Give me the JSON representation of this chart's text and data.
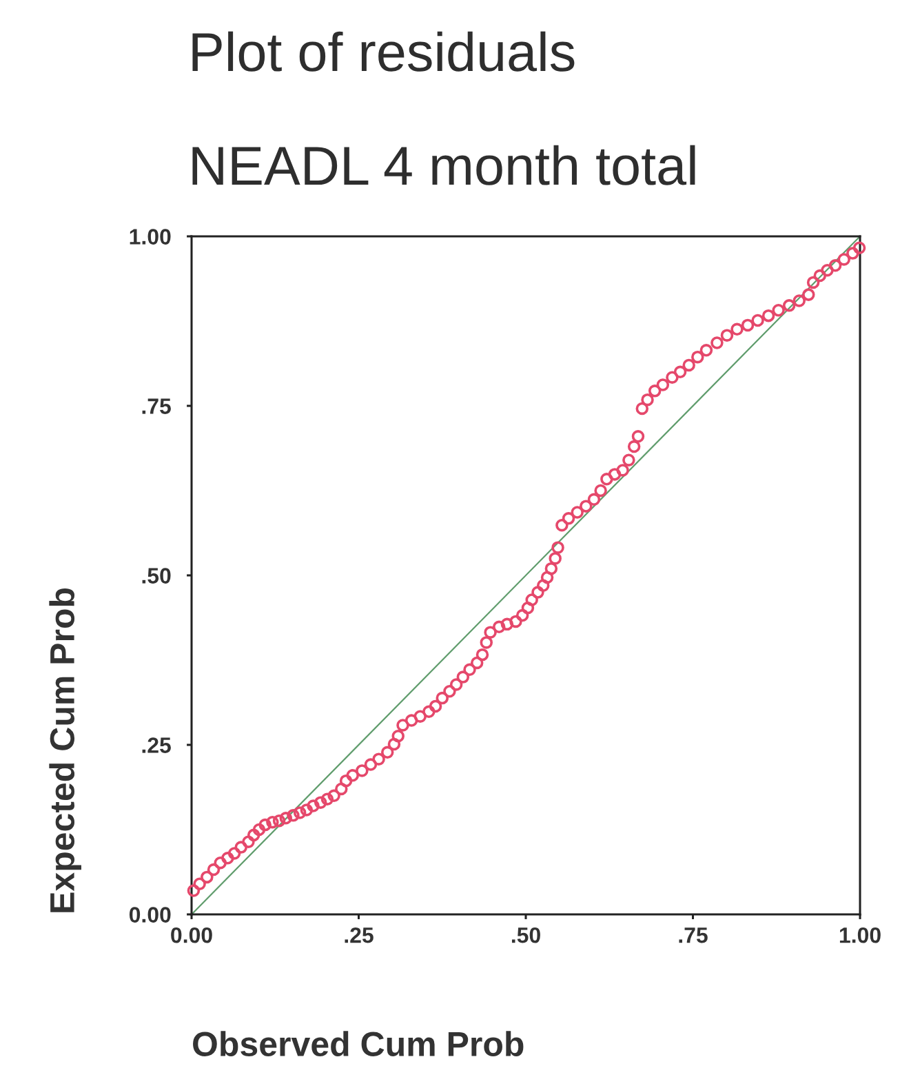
{
  "chart_data": {
    "type": "scatter",
    "title": "Plot of residuals",
    "subtitle": "NEADL 4 month total",
    "xlabel": "Observed Cum Prob",
    "ylabel": "Expected Cum Prob",
    "xlim": [
      0,
      1
    ],
    "ylim": [
      0,
      1
    ],
    "xticks": [
      {
        "value": 0,
        "label": "0.00"
      },
      {
        "value": 0.25,
        "label": ".25"
      },
      {
        "value": 0.5,
        "label": ".50"
      },
      {
        "value": 0.75,
        "label": ".75"
      },
      {
        "value": 1,
        "label": "1.00"
      }
    ],
    "yticks": [
      {
        "value": 0,
        "label": "0.00"
      },
      {
        "value": 0.25,
        "label": ".25"
      },
      {
        "value": 0.5,
        "label": ".50"
      },
      {
        "value": 0.75,
        "label": ".75"
      },
      {
        "value": 1,
        "label": "1.00"
      }
    ],
    "grid": false,
    "marker": "circle",
    "series": [
      {
        "type": "line",
        "color": "#5f9c6c",
        "x": [
          0,
          1
        ],
        "values": [
          0,
          1
        ],
        "marker": "none",
        "line_style": "solid"
      },
      {
        "color": "#e5486b",
        "x": [
          0.003,
          0.012,
          0.023,
          0.033,
          0.043,
          0.054,
          0.064,
          0.074,
          0.085,
          0.093,
          0.101,
          0.11,
          0.121,
          0.131,
          0.141,
          0.152,
          0.162,
          0.172,
          0.182,
          0.193,
          0.203,
          0.213,
          0.224,
          0.231,
          0.241,
          0.255,
          0.268,
          0.28,
          0.293,
          0.303,
          0.309,
          0.316,
          0.329,
          0.342,
          0.355,
          0.365,
          0.375,
          0.386,
          0.396,
          0.406,
          0.416,
          0.427,
          0.435,
          0.441,
          0.447,
          0.46,
          0.472,
          0.485,
          0.495,
          0.503,
          0.509,
          0.518,
          0.526,
          0.532,
          0.538,
          0.544,
          0.548,
          0.554,
          0.564,
          0.577,
          0.59,
          0.602,
          0.612,
          0.621,
          0.633,
          0.645,
          0.654,
          0.662,
          0.668,
          0.674,
          0.682,
          0.693,
          0.705,
          0.719,
          0.731,
          0.744,
          0.757,
          0.77,
          0.786,
          0.801,
          0.816,
          0.832,
          0.847,
          0.863,
          0.878,
          0.894,
          0.909,
          0.923,
          0.93,
          0.94,
          0.951,
          0.963,
          0.976,
          0.989,
          0.999
        ],
        "values": [
          0.035,
          0.045,
          0.055,
          0.066,
          0.076,
          0.083,
          0.09,
          0.099,
          0.107,
          0.117,
          0.125,
          0.132,
          0.136,
          0.138,
          0.142,
          0.146,
          0.15,
          0.154,
          0.16,
          0.165,
          0.17,
          0.175,
          0.185,
          0.197,
          0.205,
          0.212,
          0.221,
          0.229,
          0.239,
          0.251,
          0.263,
          0.279,
          0.286,
          0.292,
          0.299,
          0.307,
          0.319,
          0.329,
          0.339,
          0.35,
          0.361,
          0.371,
          0.383,
          0.401,
          0.416,
          0.424,
          0.428,
          0.432,
          0.441,
          0.452,
          0.464,
          0.475,
          0.485,
          0.497,
          0.51,
          0.525,
          0.541,
          0.574,
          0.584,
          0.593,
          0.602,
          0.612,
          0.625,
          0.642,
          0.649,
          0.655,
          0.67,
          0.69,
          0.705,
          0.746,
          0.759,
          0.772,
          0.781,
          0.792,
          0.8,
          0.81,
          0.822,
          0.832,
          0.843,
          0.854,
          0.863,
          0.869,
          0.876,
          0.883,
          0.891,
          0.898,
          0.905,
          0.914,
          0.932,
          0.942,
          0.95,
          0.957,
          0.966,
          0.975,
          0.983
        ]
      }
    ]
  }
}
